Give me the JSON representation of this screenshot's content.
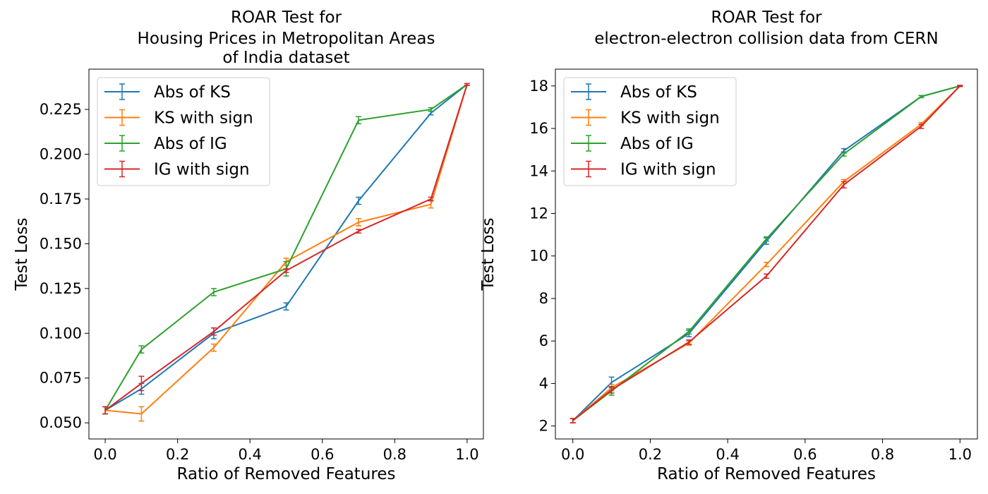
{
  "chart_data": [
    {
      "type": "line",
      "title_lines": [
        "ROAR Test for",
        "Housing Prices in Metropolitan Areas",
        "of India dataset"
      ],
      "xlabel": "Ratio of Removed Features",
      "ylabel": "Test Loss",
      "xlim": [
        -0.045,
        1.045
      ],
      "ylim": [
        0.041,
        0.2475
      ],
      "xticks": [
        0.0,
        0.2,
        0.4,
        0.6,
        0.8,
        1.0
      ],
      "xtick_labels": [
        "0.0",
        "0.2",
        "0.4",
        "0.6",
        "0.8",
        "1.0"
      ],
      "yticks": [
        0.05,
        0.075,
        0.1,
        0.125,
        0.15,
        0.175,
        0.2,
        0.225
      ],
      "ytick_labels": [
        "0.050",
        "0.075",
        "0.100",
        "0.125",
        "0.150",
        "0.175",
        "0.200",
        "0.225"
      ],
      "legend_position": "upper-left",
      "x": [
        0.0,
        0.1,
        0.3,
        0.5,
        0.7,
        0.9,
        1.0
      ],
      "series": [
        {
          "name": "Abs of KS",
          "color": "#1f77b4",
          "values": [
            0.057,
            0.069,
            0.1,
            0.115,
            0.174,
            0.223,
            0.239
          ],
          "errors": [
            0.002,
            0.003,
            0.003,
            0.002,
            0.002,
            0.001,
            0.0005
          ]
        },
        {
          "name": "KS with sign",
          "color": "#ff7f0e",
          "values": [
            0.057,
            0.055,
            0.092,
            0.14,
            0.162,
            0.172,
            0.239
          ],
          "errors": [
            0.002,
            0.004,
            0.002,
            0.002,
            0.002,
            0.002,
            0.0005
          ]
        },
        {
          "name": "Abs of IG",
          "color": "#2ca02c",
          "values": [
            0.057,
            0.091,
            0.123,
            0.136,
            0.219,
            0.225,
            0.239
          ],
          "errors": [
            0.002,
            0.002,
            0.002,
            0.004,
            0.002,
            0.001,
            0.0005
          ]
        },
        {
          "name": "IG with sign",
          "color": "#d62728",
          "values": [
            0.057,
            0.072,
            0.101,
            0.135,
            0.157,
            0.175,
            0.239
          ],
          "errors": [
            0.002,
            0.004,
            0.002,
            0.001,
            0.001,
            0.001,
            0.0005
          ]
        }
      ]
    },
    {
      "type": "line",
      "title_lines": [
        "ROAR Test for",
        "electron-electron collision data from CERN"
      ],
      "xlabel": "Ratio of Removed Features",
      "ylabel": "Test Loss",
      "xlim": [
        -0.045,
        1.045
      ],
      "ylim": [
        1.39,
        18.79
      ],
      "xticks": [
        0.0,
        0.2,
        0.4,
        0.6,
        0.8,
        1.0
      ],
      "xtick_labels": [
        "0.0",
        "0.2",
        "0.4",
        "0.6",
        "0.8",
        "1.0"
      ],
      "yticks": [
        2,
        4,
        6,
        8,
        10,
        12,
        14,
        16,
        18
      ],
      "ytick_labels": [
        "2",
        "4",
        "6",
        "8",
        "10",
        "12",
        "14",
        "16",
        "18"
      ],
      "legend_position": "upper-left",
      "x": [
        0.0,
        0.1,
        0.3,
        0.5,
        0.7,
        0.9,
        1.0
      ],
      "series": [
        {
          "name": "Abs of KS",
          "color": "#1f77b4",
          "values": [
            2.25,
            4.05,
            6.35,
            10.7,
            14.95,
            17.5,
            18.0
          ],
          "errors": [
            0.1,
            0.25,
            0.15,
            0.15,
            0.1,
            0.05,
            0.03
          ]
        },
        {
          "name": "KS with sign",
          "color": "#ff7f0e",
          "values": [
            2.25,
            3.8,
            5.9,
            9.6,
            13.5,
            16.2,
            18.0
          ],
          "errors": [
            0.1,
            0.15,
            0.1,
            0.1,
            0.1,
            0.08,
            0.03
          ]
        },
        {
          "name": "Abs of IG",
          "color": "#2ca02c",
          "values": [
            2.25,
            3.65,
            6.45,
            10.8,
            14.8,
            17.5,
            18.0
          ],
          "errors": [
            0.1,
            0.2,
            0.12,
            0.1,
            0.1,
            0.05,
            0.03
          ]
        },
        {
          "name": "IG with sign",
          "color": "#d62728",
          "values": [
            2.25,
            3.7,
            5.95,
            9.05,
            13.35,
            16.1,
            18.0
          ],
          "errors": [
            0.1,
            0.15,
            0.1,
            0.1,
            0.15,
            0.1,
            0.03
          ]
        }
      ]
    }
  ]
}
